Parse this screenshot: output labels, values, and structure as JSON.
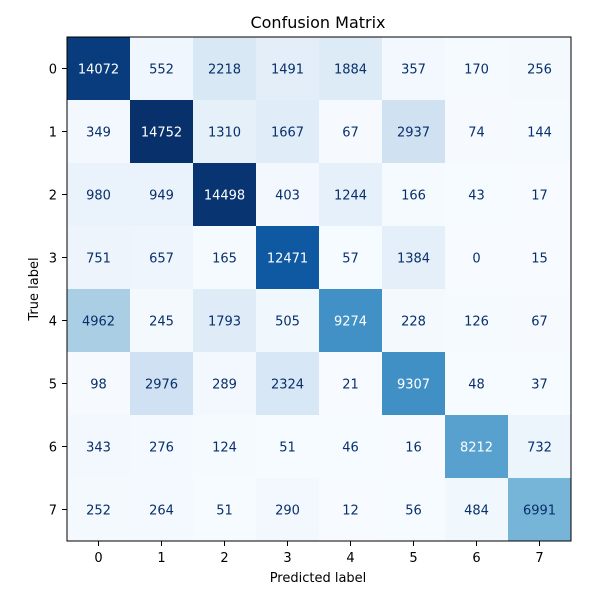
{
  "chart_data": {
    "type": "heatmap",
    "title": "Confusion Matrix",
    "xlabel": "Predicted label",
    "ylabel": "True label",
    "x_categories": [
      "0",
      "1",
      "2",
      "3",
      "4",
      "5",
      "6",
      "7"
    ],
    "y_categories": [
      "0",
      "1",
      "2",
      "3",
      "4",
      "5",
      "6",
      "7"
    ],
    "values": [
      [
        14072,
        552,
        2218,
        1491,
        1884,
        357,
        170,
        256
      ],
      [
        349,
        14752,
        1310,
        1667,
        67,
        2937,
        74,
        144
      ],
      [
        980,
        949,
        14498,
        403,
        1244,
        166,
        43,
        17
      ],
      [
        751,
        657,
        165,
        12471,
        57,
        1384,
        0,
        15
      ],
      [
        4962,
        245,
        1793,
        505,
        9274,
        228,
        126,
        67
      ],
      [
        98,
        2976,
        289,
        2324,
        21,
        9307,
        48,
        37
      ],
      [
        343,
        276,
        124,
        51,
        46,
        16,
        8212,
        732
      ],
      [
        252,
        264,
        51,
        290,
        12,
        56,
        484,
        6991
      ]
    ],
    "colormap": "Blues",
    "colorbar": false,
    "grid": false,
    "text_color_light": "#ffffff",
    "text_color_dark": "#08306b"
  }
}
